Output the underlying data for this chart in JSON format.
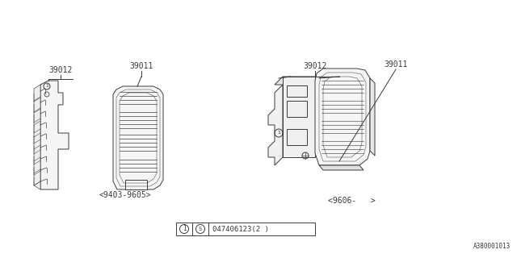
{
  "bg_color": "#ffffff",
  "line_color": "#3a3a3a",
  "label_color": "#3a3a3a",
  "left_label1": "39012",
  "left_label2": "39011",
  "right_label1": "39012",
  "right_label2": "39011",
  "left_date": "<9403-9605>",
  "right_date": "<9606-   >",
  "diagram_id": "A380001013",
  "figsize": [
    6.4,
    3.2
  ],
  "dpi": 100
}
